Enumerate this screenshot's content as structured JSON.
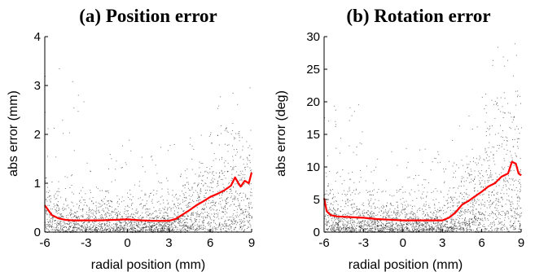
{
  "chart_data": [
    {
      "type": "scatter",
      "title": "(a) Position error",
      "xlabel": "radial position (mm)",
      "ylabel": "abs error (mm)",
      "xlim": [
        -6,
        9
      ],
      "ylim": [
        0,
        4
      ],
      "xticks": [
        -6,
        -3,
        0,
        3,
        6,
        9
      ],
      "yticks": [
        0,
        1,
        2,
        3,
        4
      ],
      "grid": false,
      "series": [
        {
          "kind": "scatter",
          "color": "#000000",
          "description_bands": [
            {
              "x": [
                -6,
                -3
              ],
              "y_typical_max": 1.2,
              "y_outlier_max": 3.4
            },
            {
              "x": [
                -3,
                3
              ],
              "y_typical_max": 0.9,
              "y_outlier_max": 1.9
            },
            {
              "x": [
                3,
                6
              ],
              "y_typical_max": 1.3,
              "y_outlier_max": 2.0
            },
            {
              "x": [
                6,
                9
              ],
              "y_typical_max": 2.2,
              "y_outlier_max": 3.0
            }
          ]
        },
        {
          "kind": "line",
          "color": "#ff0000",
          "x": [
            -6,
            -5.5,
            -5,
            -4.5,
            -4,
            -3,
            -2,
            -1,
            0,
            1,
            2,
            3,
            3.5,
            4,
            4.5,
            5,
            5.5,
            6,
            6.5,
            7,
            7.5,
            7.8,
            8,
            8.2,
            8.5,
            8.8,
            9
          ],
          "y": [
            0.55,
            0.35,
            0.28,
            0.25,
            0.24,
            0.24,
            0.24,
            0.25,
            0.26,
            0.24,
            0.23,
            0.23,
            0.27,
            0.36,
            0.45,
            0.55,
            0.63,
            0.72,
            0.78,
            0.85,
            0.95,
            1.12,
            1.02,
            0.93,
            1.05,
            1.0,
            1.22
          ]
        }
      ]
    },
    {
      "type": "scatter",
      "title": "(b) Rotation error",
      "xlabel": "radial position (mm)",
      "ylabel": "abs error (deg)",
      "xlim": [
        -6,
        9
      ],
      "ylim": [
        0,
        30
      ],
      "xticks": [
        -6,
        -3,
        0,
        3,
        6,
        9
      ],
      "yticks": [
        0,
        5,
        10,
        15,
        20,
        25,
        30
      ],
      "grid": false,
      "series": [
        {
          "kind": "scatter",
          "color": "#000000",
          "description_bands": [
            {
              "x": [
                -6,
                -3
              ],
              "y_typical_max": 10,
              "y_outlier_max": 20
            },
            {
              "x": [
                -3,
                3
              ],
              "y_typical_max": 7,
              "y_outlier_max": 13
            },
            {
              "x": [
                3,
                6
              ],
              "y_typical_max": 12,
              "y_outlier_max": 18
            },
            {
              "x": [
                6,
                9
              ],
              "y_typical_max": 22,
              "y_outlier_max": 29
            }
          ]
        },
        {
          "kind": "line",
          "color": "#ff0000",
          "x": [
            -6,
            -5.8,
            -5.5,
            -5,
            -4,
            -3,
            -2,
            -1,
            0,
            1,
            2,
            3,
            3.5,
            4,
            4.5,
            5,
            5.5,
            6,
            6.5,
            7,
            7.5,
            8,
            8.3,
            8.6,
            8.8,
            9
          ],
          "y": [
            5.2,
            3.2,
            2.6,
            2.4,
            2.3,
            2.2,
            2.0,
            1.9,
            1.8,
            1.8,
            1.8,
            1.8,
            2.2,
            3.0,
            4.2,
            4.8,
            5.5,
            6.2,
            7.0,
            7.5,
            8.5,
            9.0,
            10.8,
            10.5,
            9.0,
            8.7
          ]
        }
      ]
    }
  ]
}
